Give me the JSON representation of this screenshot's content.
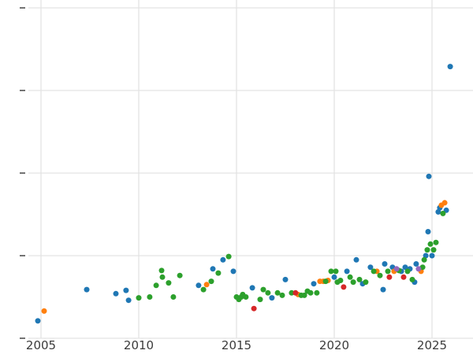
{
  "figure": {
    "background_color": "#ffffff",
    "grid_color": "#e3e3e3",
    "tick_mark_color": "#444444",
    "tick_label_color": "#3c3c3c"
  },
  "chart_data": {
    "type": "scatter",
    "title": "",
    "xlabel": "",
    "ylabel": "",
    "grid": true,
    "legend": "none",
    "x_ticks": [
      2005,
      2010,
      2015,
      2020,
      2025
    ],
    "x_range": [
      2002.9,
      2027.1
    ],
    "y_range": [
      -0.19,
      4.19
    ],
    "y_gridlines": [
      0,
      1,
      2,
      3,
      4
    ],
    "note": "y-axis tick labels cropped out of view; values in relative gridline units (one unit per gridline, 0 at bottom)",
    "series": [
      {
        "name": "series-blue",
        "color": "#1f77b4",
        "points": [
          [
            2004.84,
            0.21
          ],
          [
            2007.34,
            0.59
          ],
          [
            2008.83,
            0.54
          ],
          [
            2009.35,
            0.58
          ],
          [
            2009.48,
            0.46
          ],
          [
            2013.06,
            0.64
          ],
          [
            2013.79,
            0.84
          ],
          [
            2014.31,
            0.95
          ],
          [
            2014.84,
            0.81
          ],
          [
            2015.81,
            0.61
          ],
          [
            2016.81,
            0.49
          ],
          [
            2017.5,
            0.71
          ],
          [
            2018.95,
            0.66
          ],
          [
            2020.0,
            0.74
          ],
          [
            2020.65,
            0.81
          ],
          [
            2021.13,
            0.95
          ],
          [
            2021.45,
            0.66
          ],
          [
            2021.85,
            0.86
          ],
          [
            2022.5,
            0.59
          ],
          [
            2022.58,
            0.9
          ],
          [
            2022.98,
            0.86
          ],
          [
            2023.43,
            0.81
          ],
          [
            2023.63,
            0.86
          ],
          [
            2023.87,
            0.84
          ],
          [
            2024.11,
            0.68
          ],
          [
            2024.19,
            0.9
          ],
          [
            2024.68,
            1.0
          ],
          [
            2024.8,
            1.29
          ],
          [
            2024.84,
            1.96
          ],
          [
            2025.0,
            1.0
          ],
          [
            2025.32,
            1.53
          ],
          [
            2025.4,
            1.58
          ],
          [
            2025.73,
            1.55
          ],
          [
            2025.93,
            3.29
          ]
        ]
      },
      {
        "name": "series-orange",
        "color": "#ff7f0e",
        "points": [
          [
            2005.16,
            0.33
          ],
          [
            2013.47,
            0.65
          ],
          [
            2018.15,
            0.53
          ],
          [
            2019.27,
            0.69
          ],
          [
            2019.44,
            0.69
          ],
          [
            2019.68,
            0.7
          ],
          [
            2022.18,
            0.81
          ],
          [
            2023.06,
            0.81
          ],
          [
            2024.44,
            0.81
          ],
          [
            2025.48,
            1.61
          ],
          [
            2025.65,
            1.64
          ]
        ]
      },
      {
        "name": "series-green",
        "color": "#2ca02c",
        "points": [
          [
            2010.0,
            0.49
          ],
          [
            2010.56,
            0.5
          ],
          [
            2010.89,
            0.64
          ],
          [
            2011.17,
            0.82
          ],
          [
            2011.21,
            0.74
          ],
          [
            2011.53,
            0.67
          ],
          [
            2011.77,
            0.5
          ],
          [
            2012.1,
            0.76
          ],
          [
            2013.31,
            0.59
          ],
          [
            2013.71,
            0.69
          ],
          [
            2014.07,
            0.79
          ],
          [
            2014.6,
            0.99
          ],
          [
            2015.0,
            0.5
          ],
          [
            2015.12,
            0.47
          ],
          [
            2015.24,
            0.5
          ],
          [
            2015.32,
            0.53
          ],
          [
            2015.48,
            0.5
          ],
          [
            2016.21,
            0.47
          ],
          [
            2016.37,
            0.59
          ],
          [
            2016.61,
            0.55
          ],
          [
            2017.1,
            0.55
          ],
          [
            2017.34,
            0.52
          ],
          [
            2017.82,
            0.55
          ],
          [
            2018.31,
            0.52
          ],
          [
            2018.47,
            0.52
          ],
          [
            2018.63,
            0.57
          ],
          [
            2018.79,
            0.55
          ],
          [
            2019.11,
            0.55
          ],
          [
            2019.56,
            0.69
          ],
          [
            2019.84,
            0.81
          ],
          [
            2020.08,
            0.81
          ],
          [
            2020.16,
            0.68
          ],
          [
            2020.32,
            0.7
          ],
          [
            2020.81,
            0.74
          ],
          [
            2020.97,
            0.68
          ],
          [
            2021.29,
            0.71
          ],
          [
            2021.61,
            0.68
          ],
          [
            2022.02,
            0.81
          ],
          [
            2022.34,
            0.76
          ],
          [
            2022.74,
            0.81
          ],
          [
            2023.31,
            0.82
          ],
          [
            2023.75,
            0.81
          ],
          [
            2023.99,
            0.71
          ],
          [
            2024.52,
            0.86
          ],
          [
            2024.6,
            0.95
          ],
          [
            2024.76,
            1.07
          ],
          [
            2024.92,
            1.14
          ],
          [
            2025.08,
            1.07
          ],
          [
            2025.2,
            1.16
          ],
          [
            2025.56,
            1.51
          ]
        ]
      },
      {
        "name": "series-red",
        "color": "#d62728",
        "points": [
          [
            2015.89,
            0.36
          ],
          [
            2018.02,
            0.55
          ],
          [
            2020.48,
            0.62
          ],
          [
            2022.82,
            0.74
          ],
          [
            2023.55,
            0.74
          ]
        ]
      },
      {
        "name": "series-purple",
        "color": "#9467bd",
        "points": [
          [
            2023.19,
            0.84
          ],
          [
            2024.31,
            0.84
          ]
        ]
      }
    ]
  }
}
